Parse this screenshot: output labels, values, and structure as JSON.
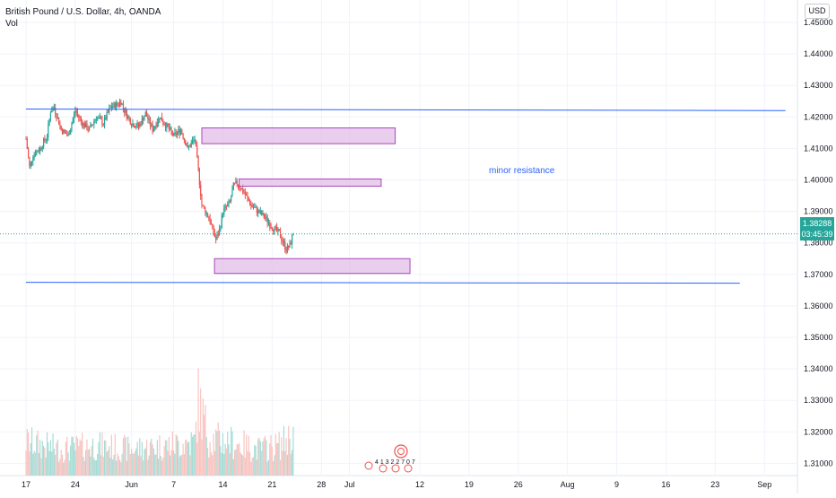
{
  "header": {
    "title": "British Pound / U.S. Dollar, 4h, OANDA",
    "volume_label": "Vol",
    "currency": "USD"
  },
  "last_price": {
    "value": "1.38288",
    "countdown": "03:45:39",
    "color": "#26a69a"
  },
  "annotation": "minor resistance",
  "events_label": "4 1 3 2 2 7 0 7",
  "colors": {
    "up": "#26a69a",
    "down": "#ef5350",
    "vol_up": "#a6dcd6",
    "vol_down": "#f8c4c1",
    "trendline": "#2962ff",
    "zone_fill": "#e1bee7",
    "zone_border": "#ab47bc"
  },
  "chart_data": {
    "type": "candlestick",
    "title": "British Pound / U.S. Dollar, 4h, OANDA",
    "y_axis": {
      "side": "right",
      "range": [
        1.3,
        1.455
      ],
      "ticks": [
        "1.45000",
        "1.44000",
        "1.43000",
        "1.42000",
        "1.41000",
        "1.40000",
        "1.39000",
        "1.38000",
        "1.37000",
        "1.36000",
        "1.35000",
        "1.34000",
        "1.33000",
        "1.32000",
        "1.31000"
      ]
    },
    "x_axis": {
      "ticks": [
        "17",
        "24",
        "Jun",
        "7",
        "14",
        "21",
        "28",
        "Jul",
        "12",
        "19",
        "26",
        "Aug",
        "9",
        "16",
        "23",
        "Sep"
      ],
      "tick_dates": [
        0,
        7,
        15,
        21,
        28,
        35,
        42,
        46,
        56,
        63,
        70,
        77,
        84,
        91,
        98,
        105
      ],
      "start_date": "May 17",
      "end_date": "Sep 1"
    },
    "price_path": [
      [
        0,
        1.413
      ],
      [
        0.5,
        1.404
      ],
      [
        1,
        1.408
      ],
      [
        2,
        1.41
      ],
      [
        3,
        1.414
      ],
      [
        3.5,
        1.422
      ],
      [
        4,
        1.423
      ],
      [
        5,
        1.416
      ],
      [
        6,
        1.414
      ],
      [
        7,
        1.422
      ],
      [
        8,
        1.418
      ],
      [
        9,
        1.416
      ],
      [
        10,
        1.42
      ],
      [
        11,
        1.418
      ],
      [
        12,
        1.423
      ],
      [
        13,
        1.424
      ],
      [
        13.5,
        1.425
      ],
      [
        14,
        1.422
      ],
      [
        15,
        1.418
      ],
      [
        16,
        1.417
      ],
      [
        17,
        1.421
      ],
      [
        18,
        1.416
      ],
      [
        19,
        1.42
      ],
      [
        20,
        1.417
      ],
      [
        21,
        1.414
      ],
      [
        22,
        1.416
      ],
      [
        23,
        1.41
      ],
      [
        24,
        1.413
      ],
      [
        24.5,
        1.403
      ],
      [
        25,
        1.392
      ],
      [
        26,
        1.388
      ],
      [
        27,
        1.381
      ],
      [
        27.5,
        1.384
      ],
      [
        28,
        1.39
      ],
      [
        29,
        1.393
      ],
      [
        29.5,
        1.398
      ],
      [
        30,
        1.399
      ],
      [
        31,
        1.396
      ],
      [
        32,
        1.392
      ],
      [
        33,
        1.39
      ],
      [
        34,
        1.388
      ],
      [
        35,
        1.385
      ],
      [
        36,
        1.383
      ],
      [
        37,
        1.378
      ],
      [
        37.5,
        1.379
      ],
      [
        38,
        1.383
      ]
    ],
    "volume_path": [
      [
        0,
        0.45
      ],
      [
        5,
        0.35
      ],
      [
        10,
        0.4
      ],
      [
        15,
        0.35
      ],
      [
        20,
        0.4
      ],
      [
        24,
        0.45
      ],
      [
        24.5,
        1.0
      ],
      [
        26,
        0.5
      ],
      [
        29,
        0.45
      ],
      [
        33,
        0.35
      ],
      [
        36,
        0.4
      ],
      [
        38,
        0.55
      ]
    ],
    "last_value": 1.38288,
    "horizontal_lines": [
      {
        "x1": 0,
        "y1": 1.4225,
        "x2": 108,
        "y2": 1.422
      },
      {
        "x1": 0,
        "y1": 1.3675,
        "x2": 101.5,
        "y2": 1.3672
      }
    ],
    "zones": [
      {
        "x1": 25,
        "x2": 52.5,
        "y1": 1.4165,
        "y2": 1.4115
      },
      {
        "x1": 30.3,
        "x2": 50.5,
        "y1": 1.4003,
        "y2": 1.398
      },
      {
        "x1": 26.8,
        "x2": 54.6,
        "y1": 1.375,
        "y2": 1.3703
      }
    ]
  }
}
